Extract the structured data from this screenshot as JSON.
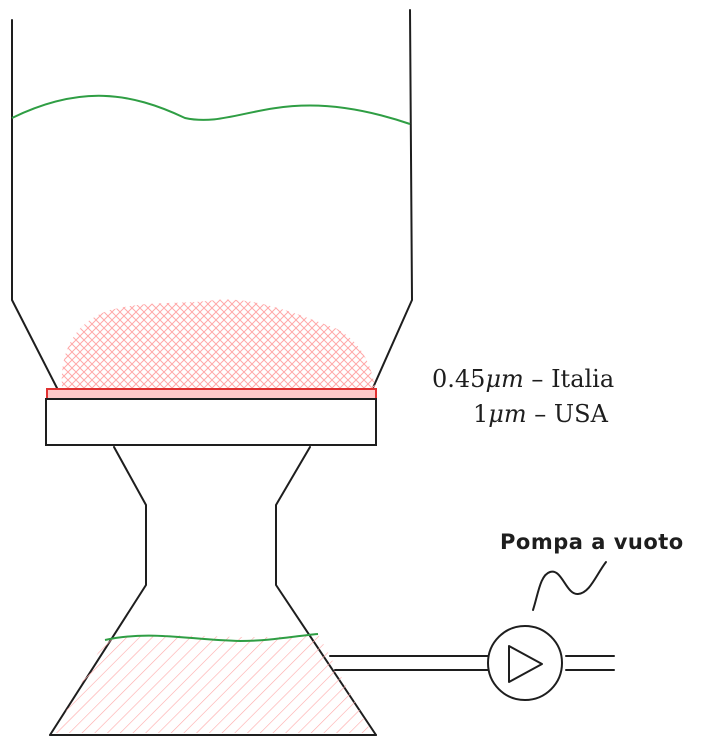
{
  "labels": {
    "filter_spec_italy": {
      "value": "0.45",
      "unit": "μm",
      "sep": " – ",
      "country": "Italia"
    },
    "filter_spec_usa": {
      "value": "1",
      "unit": "μm",
      "sep": " – ",
      "country": "USA"
    },
    "pump_label": "Pompa a vuoto"
  },
  "colors": {
    "stroke": "#1e1e1e",
    "liquid_line": "#2f9e44",
    "membrane_fill": "#ffc9c9",
    "membrane_stroke": "#e03131",
    "residue_hatch": "#ffa8a8"
  },
  "icons": {
    "pump": "play-triangle-in-circle"
  }
}
